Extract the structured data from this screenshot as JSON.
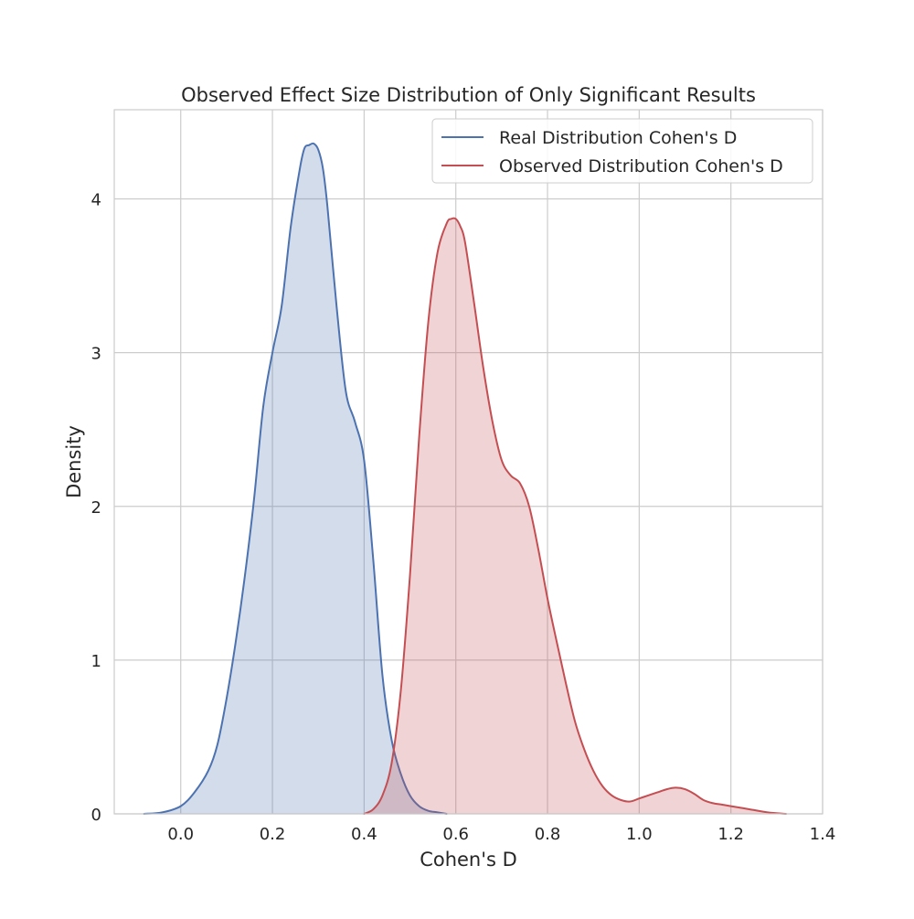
{
  "chart_data": {
    "type": "area",
    "title": "Observed Effect Size Distribution of Only Significant Results",
    "xlabel": "Cohen's D",
    "ylabel": "Density",
    "xlim": [
      -0.145,
      1.4
    ],
    "ylim": [
      0,
      4.58
    ],
    "xticks": [
      0.0,
      0.2,
      0.4,
      0.6,
      0.8,
      1.0,
      1.2,
      1.4
    ],
    "xtick_labels": [
      "0.0",
      "0.2",
      "0.4",
      "0.6",
      "0.8",
      "1.0",
      "1.2",
      "1.4"
    ],
    "yticks": [
      0,
      1,
      2,
      3,
      4
    ],
    "ytick_labels": [
      "0",
      "1",
      "2",
      "3",
      "4"
    ],
    "grid": true,
    "legend_position": "top-right",
    "series": [
      {
        "name": "Real Distribution Cohen's D",
        "color": "#4c72b0",
        "fill": "#4c72b0",
        "x": [
          -0.08,
          -0.04,
          0.0,
          0.03,
          0.06,
          0.08,
          0.1,
          0.12,
          0.14,
          0.16,
          0.18,
          0.2,
          0.22,
          0.24,
          0.26,
          0.27,
          0.28,
          0.29,
          0.3,
          0.31,
          0.32,
          0.34,
          0.36,
          0.38,
          0.4,
          0.42,
          0.44,
          0.46,
          0.48,
          0.5,
          0.52,
          0.54,
          0.56,
          0.58
        ],
        "y": [
          0.0,
          0.01,
          0.05,
          0.14,
          0.28,
          0.45,
          0.75,
          1.12,
          1.55,
          2.05,
          2.65,
          3.0,
          3.3,
          3.82,
          4.2,
          4.33,
          4.35,
          4.36,
          4.32,
          4.2,
          3.95,
          3.3,
          2.75,
          2.55,
          2.3,
          1.65,
          0.9,
          0.48,
          0.26,
          0.12,
          0.05,
          0.02,
          0.01,
          0.0
        ]
      },
      {
        "name": "Observed Distribution Cohen's D",
        "color": "#c44e52",
        "fill": "#c44e52",
        "x": [
          0.4,
          0.42,
          0.44,
          0.46,
          0.48,
          0.5,
          0.52,
          0.54,
          0.56,
          0.58,
          0.59,
          0.6,
          0.61,
          0.62,
          0.64,
          0.66,
          0.68,
          0.7,
          0.72,
          0.74,
          0.76,
          0.78,
          0.8,
          0.82,
          0.84,
          0.86,
          0.88,
          0.9,
          0.92,
          0.94,
          0.96,
          0.98,
          1.0,
          1.02,
          1.04,
          1.06,
          1.08,
          1.1,
          1.12,
          1.14,
          1.16,
          1.18,
          1.2,
          1.24,
          1.28,
          1.32
        ],
        "y": [
          0.0,
          0.03,
          0.12,
          0.33,
          0.8,
          1.55,
          2.45,
          3.2,
          3.65,
          3.84,
          3.87,
          3.87,
          3.82,
          3.72,
          3.32,
          2.9,
          2.55,
          2.3,
          2.2,
          2.15,
          2.0,
          1.72,
          1.4,
          1.12,
          0.85,
          0.6,
          0.42,
          0.28,
          0.18,
          0.12,
          0.09,
          0.08,
          0.1,
          0.12,
          0.14,
          0.16,
          0.17,
          0.16,
          0.13,
          0.09,
          0.07,
          0.06,
          0.05,
          0.03,
          0.01,
          0.0
        ]
      }
    ]
  }
}
